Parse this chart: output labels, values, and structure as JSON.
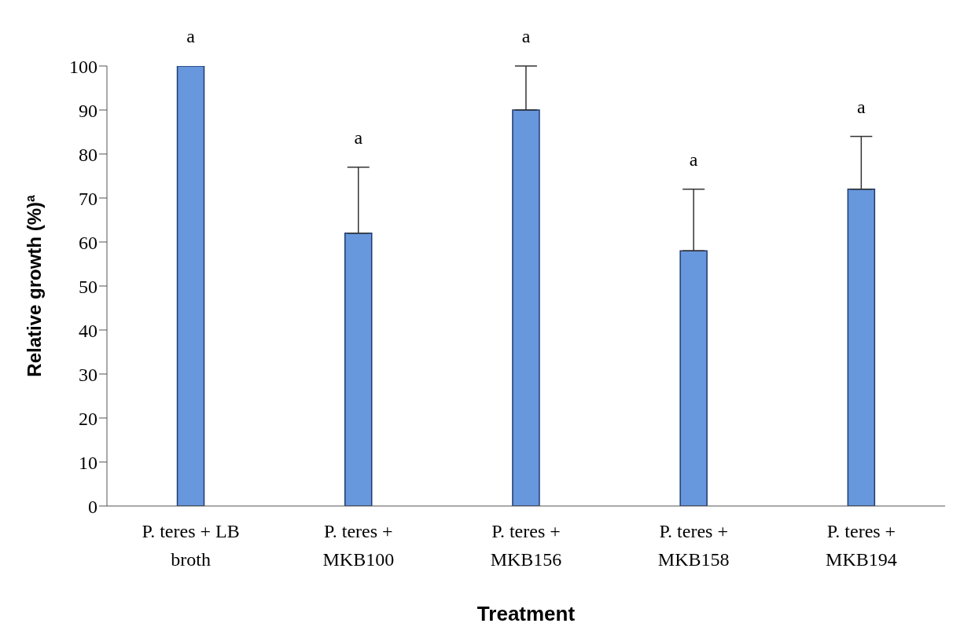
{
  "chart_data": {
    "type": "bar",
    "xlabel": "Treatment",
    "ylabel": "Relative growth (%)$^{a}$",
    "categories": [
      "P. teres + LB broth",
      "P. teres + MKB100",
      "P. teres + MKB156",
      "P. teres + MKB158",
      "P. teres + MKB194"
    ],
    "values": [
      100,
      62,
      90,
      58,
      72
    ],
    "errors": [
      null,
      [
        62,
        77
      ],
      [
        90,
        100
      ],
      [
        58,
        72
      ],
      [
        72,
        84
      ]
    ],
    "color": "#6797dd",
    "ylim": [
      0,
      100
    ],
    "yticks": [
      0,
      10,
      20,
      30,
      40,
      50,
      60,
      70,
      80,
      90,
      100
    ],
    "grid": false,
    "legend": false,
    "annotations": [
      {
        "text": "a",
        "x": "P. teres + LB broth",
        "y": 100
      },
      {
        "text": "a",
        "x": "P. teres + MKB100",
        "y": 77
      },
      {
        "text": "a",
        "x": "P. teres + MKB156",
        "y": 100
      },
      {
        "text": "a",
        "x": "P. teres + MKB158",
        "y": 72
      },
      {
        "text": "a",
        "x": "P. teres + MKB194",
        "y": 84
      }
    ]
  }
}
